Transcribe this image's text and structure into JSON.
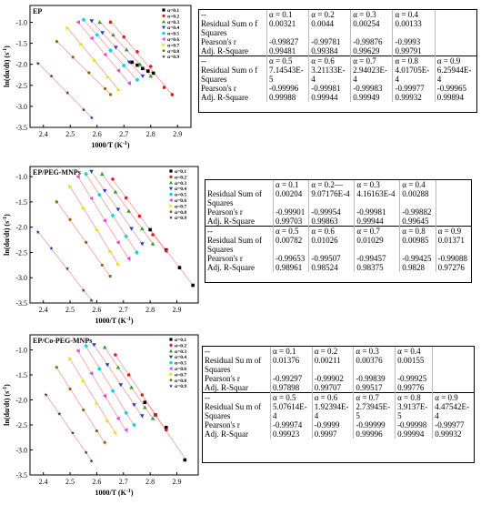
{
  "colors": {
    "series": [
      "#000000",
      "#e41a1c",
      "#2ca02c",
      "#1f3ccf",
      "#00d8e8",
      "#e23bf0",
      "#e6e600",
      "#8b6914",
      "#1b2a8f"
    ],
    "fit_line": "#f4a6a6"
  },
  "chart_data": [
    {
      "type": "scatter",
      "title": "EP",
      "xlabel": "1000/T (K",
      "xlabel_sup": "-1",
      "xlabel_end": ")",
      "ylabel": "ln(dα/dt) (s",
      "ylabel_sup": "-1",
      "ylabel_end": ")",
      "xlim": [
        2.35,
        2.95
      ],
      "ylim": [
        -3.5,
        -0.6
      ],
      "xticks": [
        "2.4",
        "2.5",
        "2.6",
        "2.7",
        "2.8",
        "2.9"
      ],
      "yticks": [
        "-1.0",
        "-1.5",
        "-2.0",
        "-2.5",
        "-3.0",
        "-3.5"
      ],
      "ytick_values": [
        -1.0,
        -1.5,
        -2.0,
        -2.5,
        -3.0,
        -3.5
      ],
      "xtick_values": [
        2.4,
        2.5,
        2.6,
        2.7,
        2.8,
        2.9
      ],
      "legend_position": "top-right",
      "series": [
        {
          "name": "α=0.1",
          "x": [
            2.73,
            2.75,
            2.77,
            2.79,
            2.81
          ],
          "y": [
            -1.95,
            -2.02,
            -2.1,
            -2.16,
            -2.21
          ]
        },
        {
          "name": "α=0.2",
          "x": [
            2.65,
            2.7,
            2.75,
            2.8,
            2.85,
            2.88
          ],
          "y": [
            -1.0,
            -1.35,
            -1.7,
            -2.05,
            -2.55,
            -2.72
          ]
        },
        {
          "name": "α=0.3",
          "x": [
            2.61,
            2.66,
            2.71,
            2.76,
            2.8
          ],
          "y": [
            -1.0,
            -1.3,
            -1.65,
            -2.0,
            -2.28
          ]
        },
        {
          "name": "α=0.4",
          "x": [
            2.58,
            2.62,
            2.67,
            2.72,
            2.77
          ],
          "y": [
            -0.97,
            -1.25,
            -1.6,
            -1.95,
            -2.28
          ]
        },
        {
          "name": "α=0.5",
          "x": [
            2.55,
            2.6,
            2.65,
            2.7,
            2.75
          ],
          "y": [
            -0.94,
            -1.3,
            -1.67,
            -2.03,
            -2.37
          ]
        },
        {
          "name": "α=0.6",
          "x": [
            2.53,
            2.58,
            2.63,
            2.68,
            2.72
          ],
          "y": [
            -1.0,
            -1.38,
            -1.77,
            -2.15,
            -2.45
          ]
        },
        {
          "name": "α=0.7",
          "x": [
            2.49,
            2.54,
            2.59,
            2.64,
            2.68
          ],
          "y": [
            -1.14,
            -1.52,
            -1.9,
            -2.3,
            -2.6
          ]
        },
        {
          "name": "α=0.8",
          "x": [
            2.45,
            2.51,
            2.57,
            2.63,
            2.65
          ],
          "y": [
            -1.46,
            -1.83,
            -2.2,
            -2.58,
            -2.72
          ]
        },
        {
          "name": "α=0.9",
          "x": [
            2.38,
            2.43,
            2.49,
            2.55,
            2.58
          ],
          "y": [
            -1.98,
            -2.28,
            -2.68,
            -3.08,
            -3.27
          ]
        }
      ]
    },
    {
      "type": "scatter",
      "title": "EP/PEG-MNPs",
      "xlabel": "1000/T (K",
      "xlabel_sup": "-1",
      "xlabel_end": ")",
      "ylabel": "ln(dα/dt) (s",
      "ylabel_sup": "-1",
      "ylabel_end": ")",
      "xlim": [
        2.35,
        2.98
      ],
      "ylim": [
        -3.5,
        -0.8
      ],
      "xticks": [
        "2.4",
        "2.5",
        "2.6",
        "2.7",
        "2.8",
        "2.9"
      ],
      "yticks": [
        "-1.0",
        "-1.5",
        "-2.0",
        "-2.5",
        "-3.0",
        "-3.5"
      ],
      "ytick_values": [
        -1.0,
        -1.5,
        -2.0,
        -2.5,
        -3.0,
        -3.5
      ],
      "xtick_values": [
        2.4,
        2.5,
        2.6,
        2.7,
        2.8,
        2.9
      ],
      "legend_position": "top-right",
      "series": [
        {
          "name": "α=0.1",
          "x": [
            2.8,
            2.86,
            2.91,
            2.96
          ],
          "y": [
            -2.05,
            -2.45,
            -2.8,
            -3.15
          ]
        },
        {
          "name": "α=0.2",
          "x": [
            2.66,
            2.71,
            2.76,
            2.81,
            2.86
          ],
          "y": [
            -1.05,
            -1.42,
            -1.78,
            -2.15,
            -2.47
          ]
        },
        {
          "name": "α=0.3",
          "x": [
            2.62,
            2.67,
            2.72,
            2.77,
            2.81
          ],
          "y": [
            -0.95,
            -1.3,
            -1.68,
            -2.03,
            -2.33
          ]
        },
        {
          "name": "α=0.4",
          "x": [
            2.58,
            2.63,
            2.68,
            2.73,
            2.77
          ],
          "y": [
            -0.9,
            -1.28,
            -1.65,
            -2.03,
            -2.33
          ]
        },
        {
          "name": "α=0.5",
          "x": [
            2.56,
            2.61,
            2.66,
            2.71,
            2.75
          ],
          "y": [
            -0.95,
            -1.36,
            -1.77,
            -2.18,
            -2.5
          ]
        },
        {
          "name": "α=0.6",
          "x": [
            2.53,
            2.58,
            2.63,
            2.68,
            2.72
          ],
          "y": [
            -1.0,
            -1.43,
            -1.87,
            -2.3,
            -2.62
          ]
        },
        {
          "name": "α=0.7",
          "x": [
            2.5,
            2.55,
            2.6,
            2.65,
            2.68
          ],
          "y": [
            -1.2,
            -1.62,
            -2.05,
            -2.48,
            -2.73
          ]
        },
        {
          "name": "α=0.8",
          "x": [
            2.45,
            2.5,
            2.56,
            2.62,
            2.65
          ],
          "y": [
            -1.5,
            -1.85,
            -2.3,
            -2.75,
            -2.97
          ]
        },
        {
          "name": "α=0.9",
          "x": [
            2.38,
            2.43,
            2.49,
            2.55,
            2.58
          ],
          "y": [
            -2.1,
            -2.42,
            -2.82,
            -3.25,
            -3.45
          ]
        }
      ]
    },
    {
      "type": "scatter",
      "title": "EP/Co-PEG-MNPs",
      "xlabel": "1000/T (K",
      "xlabel_sup": "-1",
      "xlabel_end": ")",
      "ylabel": "ln(dα/dt) (s",
      "ylabel_sup": "-1",
      "ylabel_end": ")",
      "xlim": [
        2.35,
        2.98
      ],
      "ylim": [
        -3.5,
        -0.7
      ],
      "xticks": [
        "2.4",
        "2.5",
        "2.6",
        "2.7",
        "2.8",
        "2.9"
      ],
      "yticks": [
        "-1.0",
        "-1.5",
        "-2.0",
        "-2.5",
        "-3.0",
        "-3.5"
      ],
      "ytick_values": [
        -1.0,
        -1.5,
        -2.0,
        -2.5,
        -3.0,
        -3.5
      ],
      "xtick_values": [
        2.4,
        2.5,
        2.6,
        2.7,
        2.8,
        2.9
      ],
      "legend_position": "top-right",
      "series": [
        {
          "name": "α=0.1",
          "x": [
            2.78,
            2.82,
            2.86,
            2.93
          ],
          "y": [
            -2.05,
            -2.3,
            -2.55,
            -3.2
          ]
        },
        {
          "name": "α=0.2",
          "x": [
            2.67,
            2.72,
            2.77,
            2.82,
            2.86
          ],
          "y": [
            -1.1,
            -1.5,
            -1.9,
            -2.3,
            -2.6
          ]
        },
        {
          "name": "α=0.3",
          "x": [
            2.63,
            2.68,
            2.73,
            2.78,
            2.81
          ],
          "y": [
            -0.95,
            -1.35,
            -1.75,
            -2.15,
            -2.37
          ]
        },
        {
          "name": "α=0.4",
          "x": [
            2.59,
            2.64,
            2.69,
            2.74,
            2.77
          ],
          "y": [
            -0.9,
            -1.3,
            -1.7,
            -2.1,
            -2.32
          ]
        },
        {
          "name": "α=0.5",
          "x": [
            2.56,
            2.61,
            2.66,
            2.71,
            2.74
          ],
          "y": [
            -0.92,
            -1.38,
            -1.82,
            -2.26,
            -2.5
          ]
        },
        {
          "name": "α=0.6",
          "x": [
            2.53,
            2.58,
            2.63,
            2.68,
            2.71
          ],
          "y": [
            -1.02,
            -1.47,
            -1.92,
            -2.37,
            -2.6
          ]
        },
        {
          "name": "α=0.7",
          "x": [
            2.5,
            2.55,
            2.6,
            2.64,
            2.67
          ],
          "y": [
            -1.18,
            -1.62,
            -2.07,
            -2.42,
            -2.65
          ]
        },
        {
          "name": "α=0.8",
          "x": [
            2.45,
            2.5,
            2.55,
            2.6,
            2.63
          ],
          "y": [
            -1.35,
            -1.78,
            -2.2,
            -2.62,
            -2.85
          ]
        },
        {
          "name": "α=0.9",
          "x": [
            2.41,
            2.46,
            2.51,
            2.56,
            2.58
          ],
          "y": [
            -1.9,
            -2.28,
            -2.66,
            -3.05,
            -3.22
          ]
        }
      ]
    },
    {
      "type": "table",
      "rows": [
        {
          "label": "--",
          "values": [
            "α = 0.1",
            "α = 0.2",
            "α = 0.3",
            "α = 0.4",
            ""
          ],
          "header": true
        },
        {
          "label": "Residual Sum o f Squares",
          "values": [
            "0.00321",
            "0.0044",
            "0.00254",
            "0.00133",
            ""
          ]
        },
        {
          "label": "Pearson's r",
          "values": [
            "-0.99827",
            "-0.99781",
            "-0.99876",
            "-0.9993",
            ""
          ]
        },
        {
          "label": "Adj. R-Square",
          "values": [
            "0.99481",
            "0.99384",
            "0.99629",
            "0.99791",
            ""
          ]
        },
        {
          "label": "--",
          "values": [
            "α = 0.5",
            "α = 0.6",
            "α = 0.7",
            "α = 0.8",
            "α = 0.9"
          ],
          "header": true
        },
        {
          "label": "Residual Sum o f Squares",
          "values": [
            "7.14543E-5",
            "3.21133E-4",
            "2.94023E-4",
            "4.01705E-4",
            "6.25944E-4"
          ]
        },
        {
          "label": "Pearson's r",
          "values": [
            "-0.99996",
            "-0.99981",
            "-0.99983",
            "-0.99977",
            "-0.99965"
          ]
        },
        {
          "label": "Adj. R-Square",
          "values": [
            "0.99988",
            "0.99944",
            "0.99949",
            "0.99932",
            "0.99894"
          ]
        }
      ]
    },
    {
      "type": "table",
      "rows": [
        {
          "label": "",
          "values": [
            "α = 0.1",
            "α = 0.2—",
            "α = 0.3",
            "α = 0.4",
            ""
          ],
          "header": true
        },
        {
          "label": "Residual Sum of Squares",
          "values": [
            "0.00204",
            "9.07176E-4",
            "4.16163E-4",
            "0.00288",
            ""
          ]
        },
        {
          "label": "Pearson's r",
          "values": [
            "-0.99901",
            "-0.99954",
            "-0.99981",
            "-0.99882",
            ""
          ]
        },
        {
          "label": "Adj. R-Square",
          "values": [
            "0.99703",
            "0.99863",
            "0.99944",
            "0.99645",
            ""
          ]
        },
        {
          "label": "--",
          "values": [
            "α = 0.5",
            "α = 0.6",
            "α = 0.7",
            "α = 0.8",
            "α = 0.9"
          ],
          "header": true
        },
        {
          "label": "Residual Sum of Squares",
          "values": [
            "0.00782",
            "0.01026",
            "0.01029",
            "0.00985",
            "0.01371"
          ]
        },
        {
          "label": "Pearson's r",
          "values": [
            "-0.99653",
            "-0.99507",
            "-0.99457",
            "-0.99425",
            "-0.99088"
          ]
        },
        {
          "label": "Adj. R-Square",
          "values": [
            "0.98961",
            "0.98524",
            "0.98375",
            "0.9828",
            "0.97276"
          ]
        }
      ]
    },
    {
      "type": "table",
      "rows": [
        {
          "label": "--",
          "values": [
            "α = 0.1",
            "α = 0.2",
            "α = 0.3",
            "α = 0.4",
            ""
          ],
          "header": true
        },
        {
          "label": "Residual Su m of Squares",
          "values": [
            "0.01376",
            "0.00211",
            "0.00376",
            "0.00155",
            ""
          ]
        },
        {
          "label": "Pearson's r",
          "values": [
            "-0.99297",
            "-0.99902",
            "-0.99839",
            "-0.99925",
            ""
          ]
        },
        {
          "label": "Adj. R-Squar",
          "values": [
            "0.97898",
            "0.99707",
            "0.99517",
            "0.99776",
            ""
          ]
        },
        {
          "label": "--",
          "values": [
            "α = 0.5",
            "α = 0.6",
            "α = 0.7",
            "α = 0.8",
            "α = 0.9"
          ],
          "header": true
        },
        {
          "label": "Residual Su m of Squares",
          "values": [
            "5.07614E-4",
            "1.92394E-4",
            "2.73945E-5",
            "3.9137E-5",
            "4.47542E-4"
          ]
        },
        {
          "label": "Pearson's r",
          "values": [
            "-0.99974",
            "-0.9999",
            "-0.99999",
            "-0.99998",
            "-0.99977"
          ]
        },
        {
          "label": "Adj. R-Squar",
          "values": [
            "0.99923",
            "0.9997",
            "0.99996",
            "0.99994",
            "0.99932"
          ]
        }
      ]
    }
  ]
}
